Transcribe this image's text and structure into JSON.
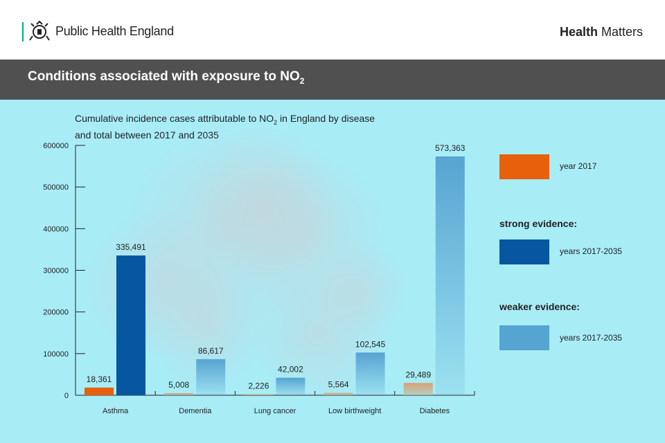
{
  "header": {
    "org_name": "Public Health England",
    "series_bold": "Health",
    "series_rest": "Matters"
  },
  "banner": {
    "title": "Conditions associated with exposure to NO",
    "title_sub": "2"
  },
  "subtitle": {
    "line_a": "Cumulative incidence cases attributable to NO",
    "sub": "2",
    "line_b": " in England by disease and total between 2017 and 2035"
  },
  "legend": {
    "year2017": "year 2017",
    "strong_head": "strong evidence:",
    "strong_label": "years 2017-2035",
    "weaker_head": "weaker evidence:",
    "weaker_label": "years 2017-2035"
  },
  "colors": {
    "year2017": "#e8600c",
    "strong": "#0656a0",
    "weaker": "#56a4d2",
    "background": "#a8ecf6"
  },
  "chart_data": {
    "type": "bar",
    "title": "Cumulative incidence cases attributable to NO2 in England by disease and total between 2017 and 2035",
    "categories": [
      "Asthma",
      "Dementia",
      "Lung cancer",
      "Low birthweight",
      "Diabetes"
    ],
    "ylim": [
      0,
      600000
    ],
    "yticks": [
      "0",
      "100000",
      "200000",
      "300000",
      "400000",
      "500000",
      "600000"
    ],
    "series": [
      {
        "name": "year 2017",
        "values": [
          18361,
          5008,
          2226,
          5564,
          29489
        ],
        "labels": [
          "18,361",
          "5,008",
          "2,226",
          "5,564",
          "29,489"
        ]
      },
      {
        "name": "years 2017-2035",
        "values": [
          335491,
          86617,
          42002,
          102545,
          573363
        ],
        "labels": [
          "335,491",
          "86,617",
          "42,002",
          "102,545",
          "573,363"
        ],
        "evidence": [
          "strong",
          "weaker",
          "weaker",
          "weaker",
          "weaker"
        ]
      }
    ]
  }
}
